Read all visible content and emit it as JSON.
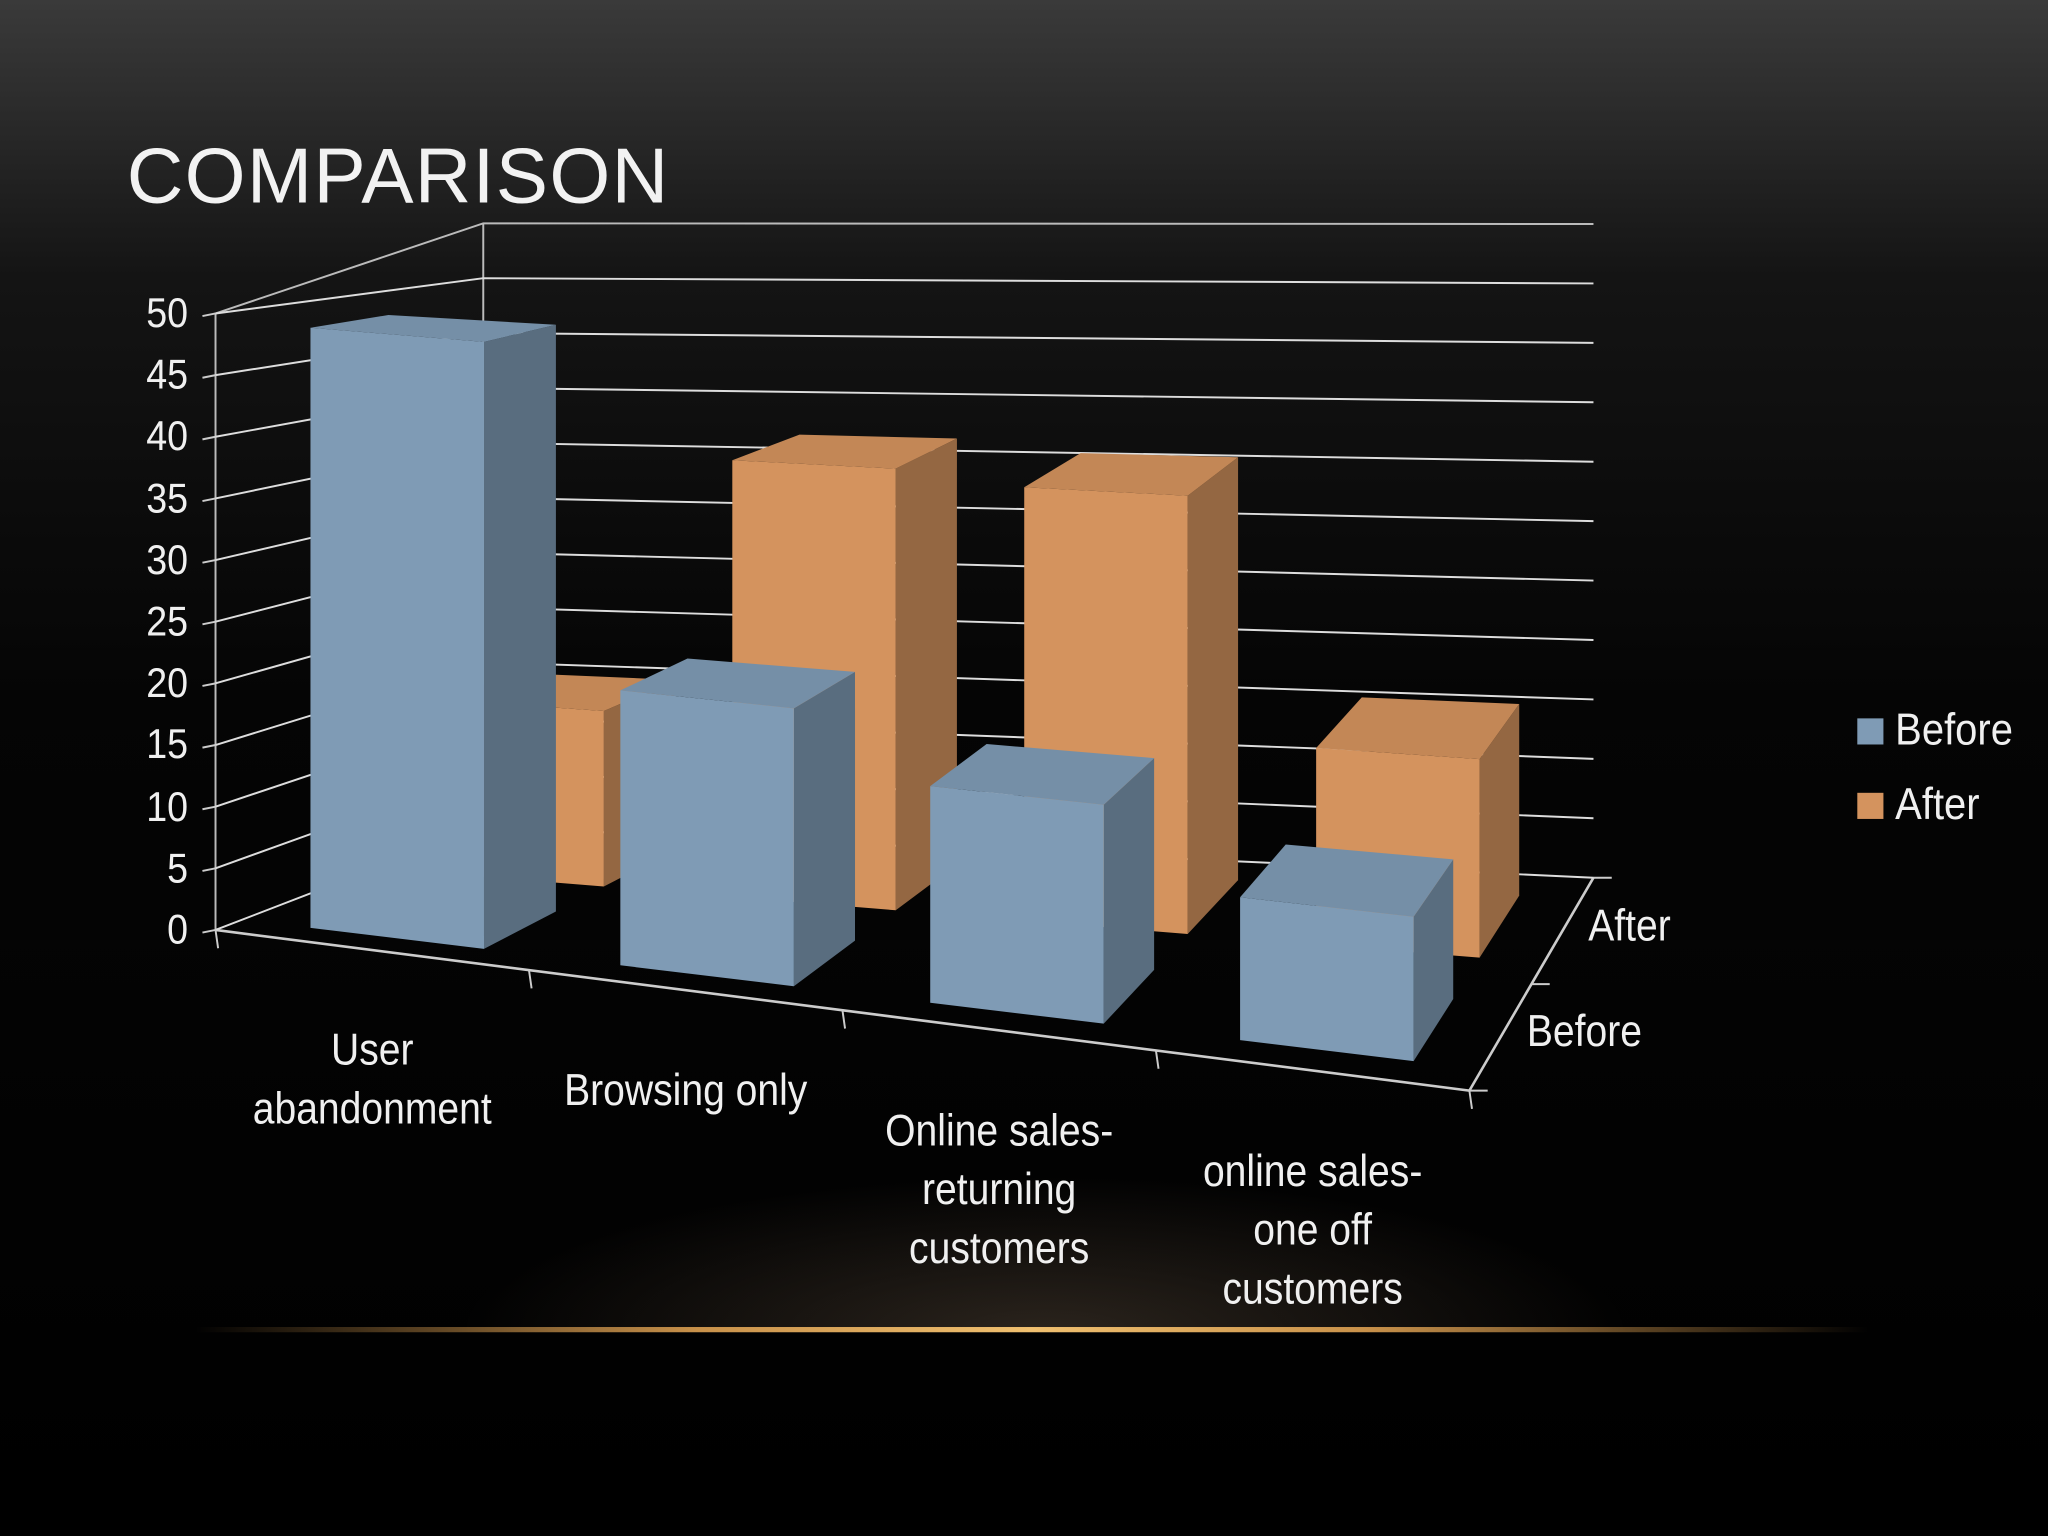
{
  "chart_data": {
    "type": "bar3d",
    "title": "COMPARISON",
    "categories": [
      "User abandonment",
      "Browsing only",
      "Online sales-returning customers",
      "online sales-one off customers"
    ],
    "series": [
      {
        "name": "Before",
        "color": "#7f9bb5",
        "values": [
          49,
          22,
          17,
          11
        ]
      },
      {
        "name": "After",
        "color": "#d4935e",
        "values": [
          15,
          37,
          36,
          16
        ]
      }
    ],
    "ylim": [
      0,
      50
    ],
    "yticks": [
      0,
      5,
      10,
      15,
      20,
      25,
      30,
      35,
      40,
      45,
      50
    ],
    "grid": true,
    "legend": "right"
  }
}
